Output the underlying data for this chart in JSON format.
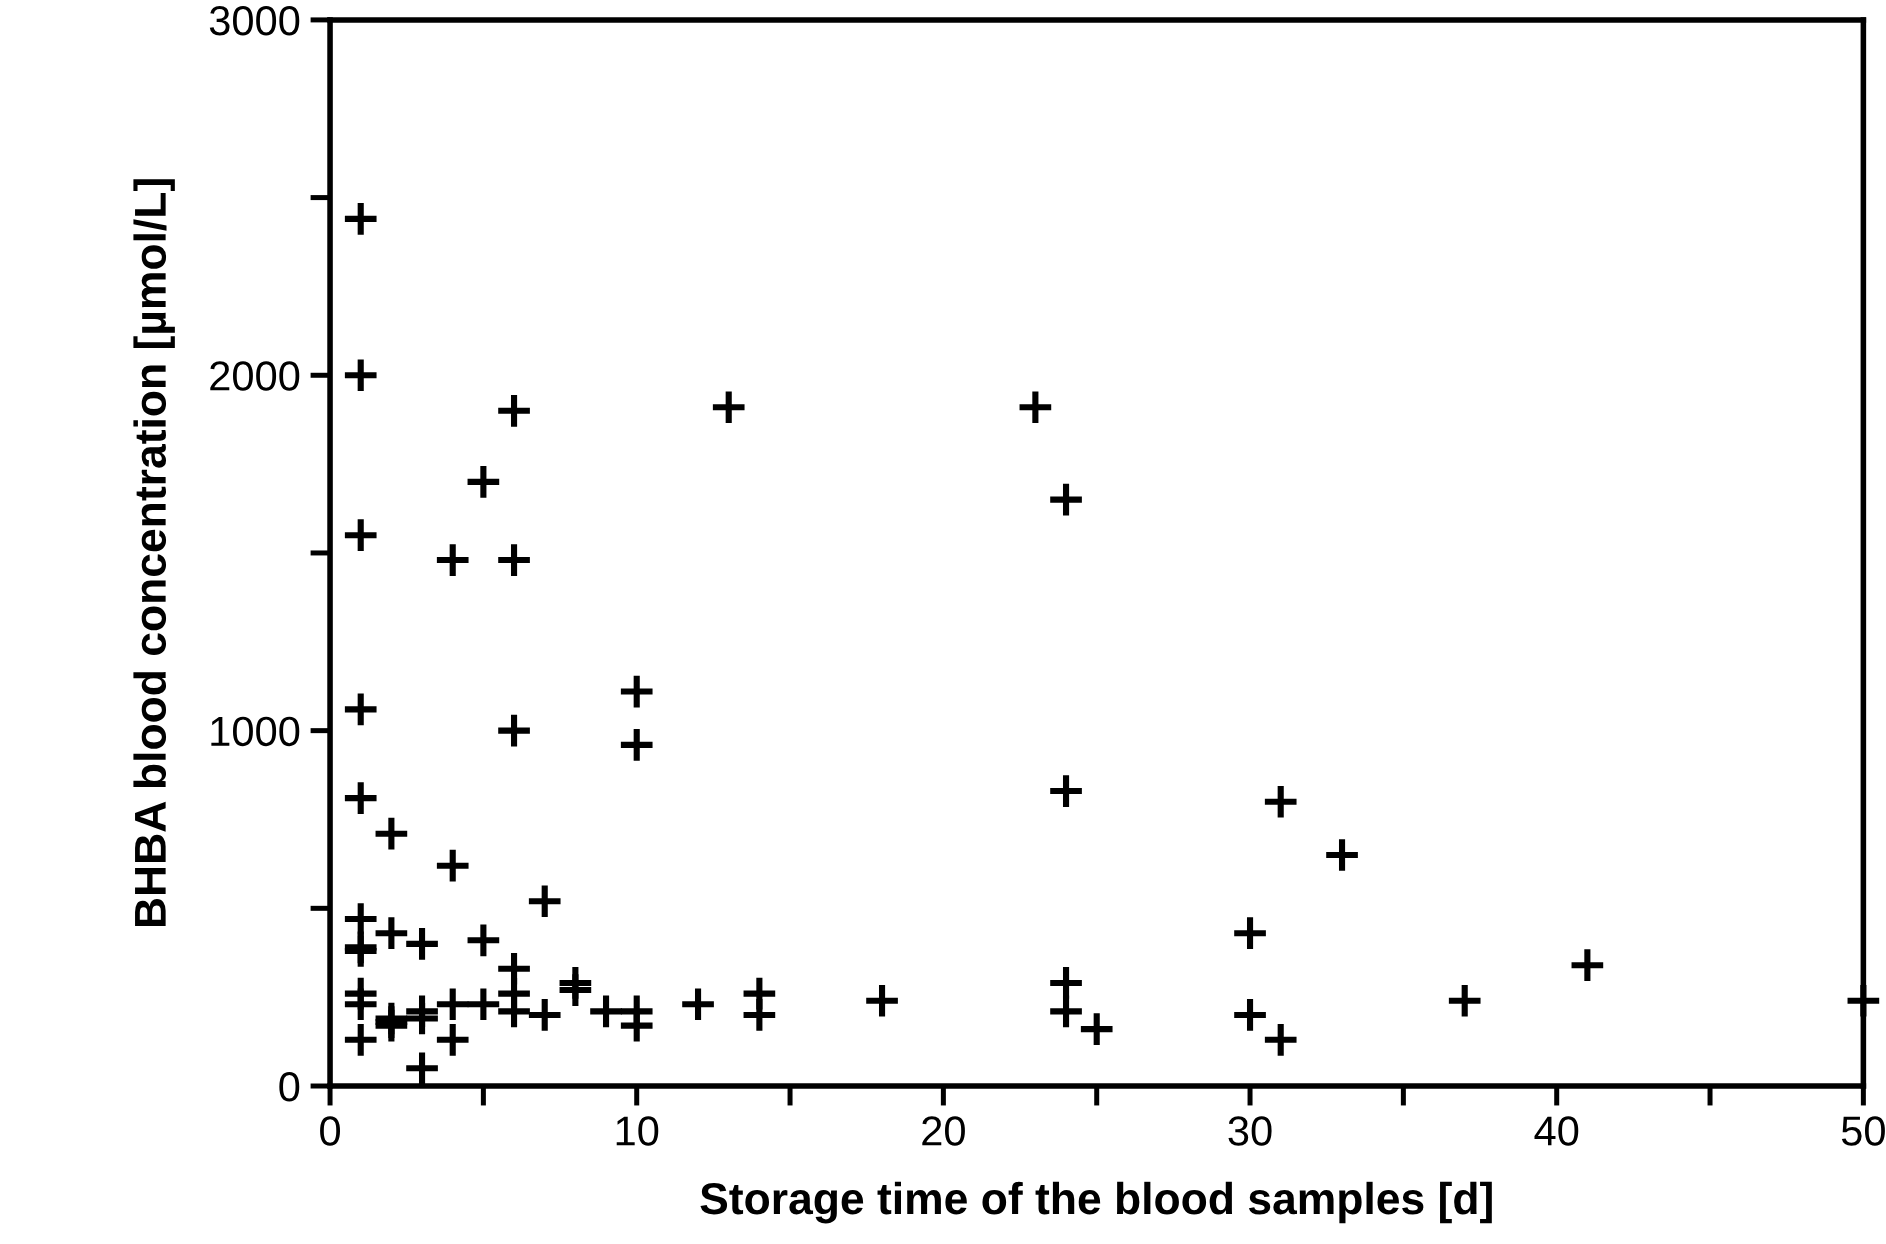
{
  "chart_data": {
    "type": "scatter",
    "xlabel": "Storage time of the blood samples [d]",
    "ylabel": "BHBA blood concentration [µmol/L]",
    "x": [
      1,
      1,
      1,
      1,
      1,
      1,
      1,
      1,
      1,
      1,
      1,
      2,
      2,
      2,
      2,
      2,
      3,
      3,
      3,
      3,
      4,
      4,
      4,
      4,
      5,
      5,
      5,
      6,
      6,
      6,
      6,
      6,
      6,
      7,
      7,
      8,
      8,
      9,
      10,
      10,
      10,
      10,
      12,
      13,
      14,
      14,
      18,
      23,
      24,
      24,
      24,
      24,
      25,
      30,
      30,
      31,
      31,
      33,
      37,
      41,
      50
    ],
    "values": [
      2440,
      2000,
      1550,
      1060,
      810,
      470,
      390,
      380,
      260,
      230,
      130,
      710,
      430,
      190,
      170,
      180,
      400,
      210,
      190,
      50,
      1480,
      620,
      230,
      130,
      1700,
      410,
      230,
      1900,
      1480,
      1000,
      330,
      260,
      210,
      520,
      200,
      290,
      270,
      210,
      1110,
      960,
      210,
      170,
      230,
      1910,
      260,
      200,
      240,
      1910,
      1650,
      830,
      290,
      210,
      160,
      430,
      200,
      800,
      130,
      650,
      240,
      340,
      240
    ],
    "color": "#000000",
    "marker": "cross",
    "xlim": [
      0,
      50
    ],
    "xticks": [
      0,
      {
        "value": 5,
        "label": null
      },
      10,
      {
        "value": 15,
        "label": null
      },
      20,
      {
        "value": 25,
        "label": null
      },
      30,
      {
        "value": 35,
        "label": null
      },
      40,
      {
        "value": 45,
        "label": null
      },
      50
    ],
    "ylim": [
      0,
      3000
    ],
    "yticks": [
      0,
      {
        "value": 500,
        "label": null
      },
      1000,
      {
        "value": 1500,
        "label": null
      },
      2000,
      {
        "value": 2500,
        "label": null
      },
      3000
    ],
    "grid": false,
    "legend": false
  }
}
